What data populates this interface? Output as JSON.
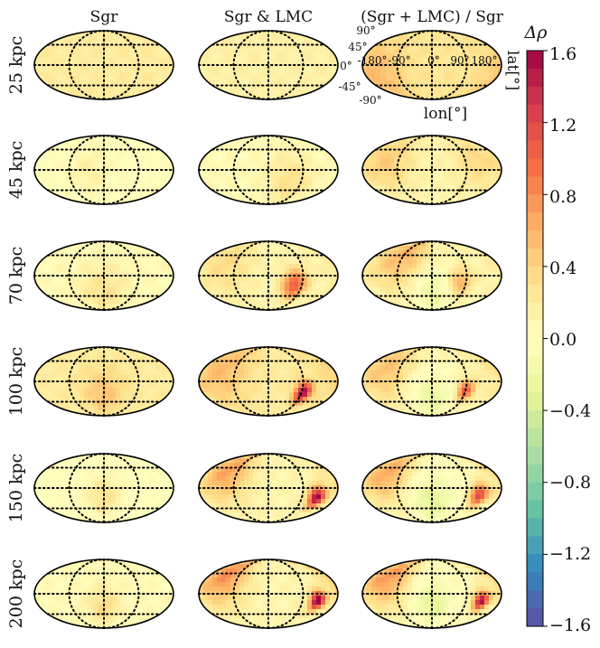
{
  "chart_data": {
    "type": "heatmap",
    "projection": "mollweide",
    "quantity": "density contrast",
    "columns": [
      "Sgr",
      "Sgr & LMC",
      "(Sgr + LMC) / Sgr"
    ],
    "rows": [
      "25 kpc",
      "45 kpc",
      "70 kpc",
      "100 kpc",
      "150 kpc",
      "200 kpc"
    ],
    "xlabel": "lon[°]",
    "ylabel": "lat[°]",
    "lon_ticks": [
      "-180°",
      "-90°",
      "0°",
      "90°",
      "180°"
    ],
    "lat_ticks": [
      "90°",
      "45°",
      "0°",
      "-45°",
      "-90°"
    ],
    "graticule": {
      "lon_deg": [
        -90,
        0,
        90
      ],
      "lat_deg": [
        -45,
        0,
        45
      ],
      "style": "dotted"
    },
    "colorbar": {
      "title": "Δρ",
      "range": [
        -1.6,
        1.6
      ],
      "ticks": [
        "1.6",
        "1.2",
        "0.8",
        "0.4",
        "0.0",
        "−0.4",
        "−0.8",
        "−1.2",
        "−1.6"
      ],
      "colormap": "Spectral_r",
      "levels": 32
    },
    "panel_features": [
      [
        {
          "base": 0.2,
          "hot": []
        },
        {
          "base": 0.15,
          "hot": []
        },
        {
          "base": 0.25,
          "hot": [
            {
              "lon": -150,
              "lat": -20,
              "amp": 0.3,
              "w": 50
            }
          ]
        }
      ],
      [
        {
          "base": 0.0,
          "hot": [
            {
              "lon": -40,
              "lat": 0,
              "amp": 0.15,
              "w": 40
            }
          ]
        },
        {
          "base": 0.05,
          "hot": [
            {
              "lon": 60,
              "lat": -30,
              "amp": 0.25,
              "w": 45
            }
          ]
        },
        {
          "base": 0.1,
          "hot": [
            {
              "lon": -120,
              "lat": 20,
              "amp": 0.35,
              "w": 45
            },
            {
              "lon": 120,
              "lat": 20,
              "amp": 0.25,
              "w": 40
            }
          ]
        }
      ],
      [
        {
          "base": 0.05,
          "hot": [
            {
              "lon": 0,
              "lat": -40,
              "amp": 0.25,
              "w": 45
            }
          ]
        },
        {
          "base": 0.1,
          "hot": [
            {
              "lon": 70,
              "lat": -20,
              "amp": 1.0,
              "w": 22
            },
            {
              "lon": -120,
              "lat": 30,
              "amp": 0.25,
              "w": 50
            }
          ]
        },
        {
          "base": 0.1,
          "hot": [
            {
              "lon": 75,
              "lat": -15,
              "amp": 0.55,
              "w": 22
            },
            {
              "lon": -90,
              "lat": 55,
              "amp": 0.5,
              "w": 55
            },
            {
              "lon": 0,
              "lat": -45,
              "amp": -0.35,
              "w": 45
            }
          ]
        }
      ],
      [
        {
          "base": 0.2,
          "hot": [
            {
              "lon": 0,
              "lat": -30,
              "amp": 0.3,
              "w": 40
            }
          ]
        },
        {
          "base": 0.2,
          "hot": [
            {
              "lon": 95,
              "lat": -25,
              "amp": 1.4,
              "w": 16
            },
            {
              "lon": -130,
              "lat": 30,
              "amp": 0.35,
              "w": 55
            }
          ]
        },
        {
          "base": 0.1,
          "hot": [
            {
              "lon": 90,
              "lat": -20,
              "amp": 1.0,
              "w": 16
            },
            {
              "lon": -130,
              "lat": 30,
              "amp": 0.4,
              "w": 50
            },
            {
              "lon": 0,
              "lat": -40,
              "amp": -0.35,
              "w": 45
            }
          ]
        }
      ],
      [
        {
          "base": 0.0,
          "hot": [
            {
              "lon": 0,
              "lat": -20,
              "amp": 0.3,
              "w": 30
            }
          ]
        },
        {
          "base": 0.1,
          "hot": [
            {
              "lon": 130,
              "lat": -20,
              "amp": 1.5,
              "w": 16
            },
            {
              "lon": -120,
              "lat": 40,
              "amp": 0.6,
              "w": 45
            }
          ]
        },
        {
          "base": 0.05,
          "hot": [
            {
              "lon": 125,
              "lat": -15,
              "amp": 1.2,
              "w": 16
            },
            {
              "lon": -130,
              "lat": 35,
              "amp": 0.6,
              "w": 45
            },
            {
              "lon": 0,
              "lat": -30,
              "amp": -0.35,
              "w": 40
            }
          ]
        }
      ],
      [
        {
          "base": 0.05,
          "hot": [
            {
              "lon": 0,
              "lat": -30,
              "amp": 0.3,
              "w": 30
            }
          ]
        },
        {
          "base": 0.1,
          "hot": [
            {
              "lon": 130,
              "lat": -15,
              "amp": 1.6,
              "w": 14
            },
            {
              "lon": -130,
              "lat": 45,
              "amp": 0.7,
              "w": 45
            }
          ]
        },
        {
          "base": 0.05,
          "hot": [
            {
              "lon": 130,
              "lat": -15,
              "amp": 1.5,
              "w": 14
            },
            {
              "lon": -130,
              "lat": 40,
              "amp": 0.7,
              "w": 45
            },
            {
              "lon": 0,
              "lat": -20,
              "amp": -0.35,
              "w": 35
            }
          ]
        }
      ]
    ]
  }
}
